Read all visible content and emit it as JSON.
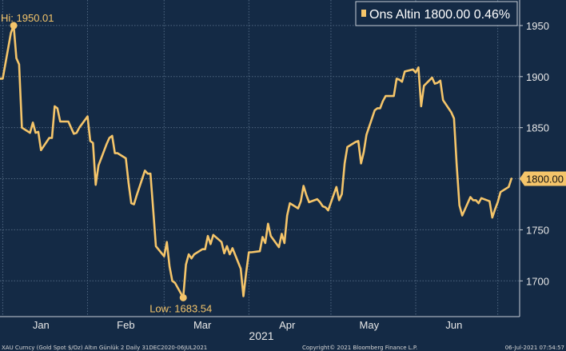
{
  "colors": {
    "background": "#142a45",
    "grid": "#4f6680",
    "line": "#f5c56a",
    "text": "#e8e8e8"
  },
  "legend": {
    "label": "Ons Altin 1800.00 0.46%"
  },
  "annotations": {
    "high_label": "Hi: 1950.01",
    "low_label": "Low: 1683.54"
  },
  "last_value_label": "1800.00",
  "footer": {
    "left": "XAU Curncy (Gold Spot  $/Oz) Altın Günlük 2  Daily 31DEC2020-06JUL2021",
    "center": "Copyright© 2021 Bloomberg Finance L.P.",
    "right": "06-Jul-2021 07:54:57"
  },
  "chart_data": {
    "type": "line",
    "title": "",
    "xlabel": "2021",
    "ylabel": "",
    "ylim": [
      1665,
      1975
    ],
    "y_ticks": [
      1700,
      1750,
      1800,
      1850,
      1900,
      1950
    ],
    "y_axis_side": "right",
    "grid": true,
    "legend_position": "top-right",
    "x_ticks": [
      "Jan",
      "Feb",
      "Mar",
      "Apr",
      "May",
      "Jun"
    ],
    "x_tick_dates": [
      "2021-01-15",
      "2021-02-15",
      "2021-03-15",
      "2021-04-15",
      "2021-05-15",
      "2021-06-15"
    ],
    "x_grid_dates": [
      "2021-01-01",
      "2021-02-01",
      "2021-03-01",
      "2021-04-01",
      "2021-05-01",
      "2021-06-01",
      "2021-07-01"
    ],
    "x_range": [
      "2020-12-31",
      "2021-07-09"
    ],
    "series": [
      {
        "name": "Ons Altin",
        "last_value": 1800.0,
        "change_pct": 0.46,
        "high": 1950.01,
        "low": 1683.54,
        "points": [
          [
            "2020-12-31",
            1898
          ],
          [
            "2021-01-01",
            1898
          ],
          [
            "2021-01-04",
            1943
          ],
          [
            "2021-01-05",
            1950.01
          ],
          [
            "2021-01-06",
            1918
          ],
          [
            "2021-01-07",
            1912
          ],
          [
            "2021-01-08",
            1850
          ],
          [
            "2021-01-11",
            1845
          ],
          [
            "2021-01-12",
            1855
          ],
          [
            "2021-01-13",
            1845
          ],
          [
            "2021-01-14",
            1846
          ],
          [
            "2021-01-15",
            1828
          ],
          [
            "2021-01-18",
            1840
          ],
          [
            "2021-01-19",
            1840
          ],
          [
            "2021-01-20",
            1871
          ],
          [
            "2021-01-21",
            1869
          ],
          [
            "2021-01-22",
            1856
          ],
          [
            "2021-01-25",
            1856
          ],
          [
            "2021-01-26",
            1850
          ],
          [
            "2021-01-27",
            1844
          ],
          [
            "2021-01-28",
            1845
          ],
          [
            "2021-01-29",
            1850
          ],
          [
            "2021-02-01",
            1861
          ],
          [
            "2021-02-02",
            1837
          ],
          [
            "2021-02-03",
            1835
          ],
          [
            "2021-02-04",
            1794
          ],
          [
            "2021-02-05",
            1813
          ],
          [
            "2021-02-08",
            1834
          ],
          [
            "2021-02-09",
            1840
          ],
          [
            "2021-02-10",
            1842
          ],
          [
            "2021-02-11",
            1825
          ],
          [
            "2021-02-12",
            1825
          ],
          [
            "2021-02-15",
            1820
          ],
          [
            "2021-02-16",
            1796
          ],
          [
            "2021-02-17",
            1776
          ],
          [
            "2021-02-18",
            1775
          ],
          [
            "2021-02-19",
            1784
          ],
          [
            "2021-02-22",
            1808
          ],
          [
            "2021-02-23",
            1805
          ],
          [
            "2021-02-24",
            1805
          ],
          [
            "2021-02-25",
            1770
          ],
          [
            "2021-02-26",
            1734
          ],
          [
            "2021-03-01",
            1724
          ],
          [
            "2021-03-02",
            1738
          ],
          [
            "2021-03-03",
            1714
          ],
          [
            "2021-03-04",
            1700
          ],
          [
            "2021-03-05",
            1698
          ],
          [
            "2021-03-08",
            1683.54
          ],
          [
            "2021-03-09",
            1716
          ],
          [
            "2021-03-10",
            1726
          ],
          [
            "2021-03-11",
            1722
          ],
          [
            "2021-03-12",
            1726
          ],
          [
            "2021-03-15",
            1731
          ],
          [
            "2021-03-16",
            1731
          ],
          [
            "2021-03-17",
            1744
          ],
          [
            "2021-03-18",
            1736
          ],
          [
            "2021-03-19",
            1745
          ],
          [
            "2021-03-22",
            1738
          ],
          [
            "2021-03-23",
            1727
          ],
          [
            "2021-03-24",
            1734
          ],
          [
            "2021-03-25",
            1726
          ],
          [
            "2021-03-26",
            1732
          ],
          [
            "2021-03-29",
            1712
          ],
          [
            "2021-03-30",
            1685
          ],
          [
            "2021-03-31",
            1708
          ],
          [
            "2021-04-01",
            1728
          ],
          [
            "2021-04-02",
            1728
          ],
          [
            "2021-04-05",
            1729
          ],
          [
            "2021-04-06",
            1743
          ],
          [
            "2021-04-07",
            1737
          ],
          [
            "2021-04-08",
            1756
          ],
          [
            "2021-04-09",
            1744
          ],
          [
            "2021-04-12",
            1733
          ],
          [
            "2021-04-13",
            1746
          ],
          [
            "2021-04-14",
            1737
          ],
          [
            "2021-04-15",
            1764
          ],
          [
            "2021-04-16",
            1776
          ],
          [
            "2021-04-19",
            1771
          ],
          [
            "2021-04-20",
            1778
          ],
          [
            "2021-04-21",
            1793
          ],
          [
            "2021-04-22",
            1784
          ],
          [
            "2021-04-23",
            1777
          ],
          [
            "2021-04-26",
            1780
          ],
          [
            "2021-04-27",
            1777
          ],
          [
            "2021-04-28",
            1773
          ],
          [
            "2021-04-29",
            1772
          ],
          [
            "2021-04-30",
            1769
          ],
          [
            "2021-05-03",
            1792
          ],
          [
            "2021-05-04",
            1779
          ],
          [
            "2021-05-05",
            1785
          ],
          [
            "2021-05-06",
            1815
          ],
          [
            "2021-05-07",
            1831
          ],
          [
            "2021-05-10",
            1836
          ],
          [
            "2021-05-11",
            1837
          ],
          [
            "2021-05-12",
            1815
          ],
          [
            "2021-05-13",
            1826
          ],
          [
            "2021-05-14",
            1843
          ],
          [
            "2021-05-17",
            1867
          ],
          [
            "2021-05-18",
            1869
          ],
          [
            "2021-05-19",
            1869
          ],
          [
            "2021-05-20",
            1876
          ],
          [
            "2021-05-21",
            1881
          ],
          [
            "2021-05-24",
            1881
          ],
          [
            "2021-05-25",
            1898
          ],
          [
            "2021-05-26",
            1897
          ],
          [
            "2021-05-27",
            1895
          ],
          [
            "2021-05-28",
            1905
          ],
          [
            "2021-05-31",
            1907
          ],
          [
            "2021-06-01",
            1904
          ],
          [
            "2021-06-02",
            1909
          ],
          [
            "2021-06-03",
            1871
          ],
          [
            "2021-06-04",
            1891
          ],
          [
            "2021-06-07",
            1899
          ],
          [
            "2021-06-08",
            1893
          ],
          [
            "2021-06-09",
            1894
          ],
          [
            "2021-06-10",
            1896
          ],
          [
            "2021-06-11",
            1877
          ],
          [
            "2021-06-14",
            1865
          ],
          [
            "2021-06-15",
            1859
          ],
          [
            "2021-06-16",
            1813
          ],
          [
            "2021-06-17",
            1774
          ],
          [
            "2021-06-18",
            1764
          ],
          [
            "2021-06-21",
            1782
          ],
          [
            "2021-06-22",
            1779
          ],
          [
            "2021-06-23",
            1779
          ],
          [
            "2021-06-24",
            1776
          ],
          [
            "2021-06-25",
            1781
          ],
          [
            "2021-06-28",
            1778
          ],
          [
            "2021-06-29",
            1762
          ],
          [
            "2021-06-30",
            1770
          ],
          [
            "2021-07-01",
            1777
          ],
          [
            "2021-07-02",
            1787
          ],
          [
            "2021-07-05",
            1792
          ],
          [
            "2021-07-06",
            1800
          ]
        ]
      }
    ]
  }
}
